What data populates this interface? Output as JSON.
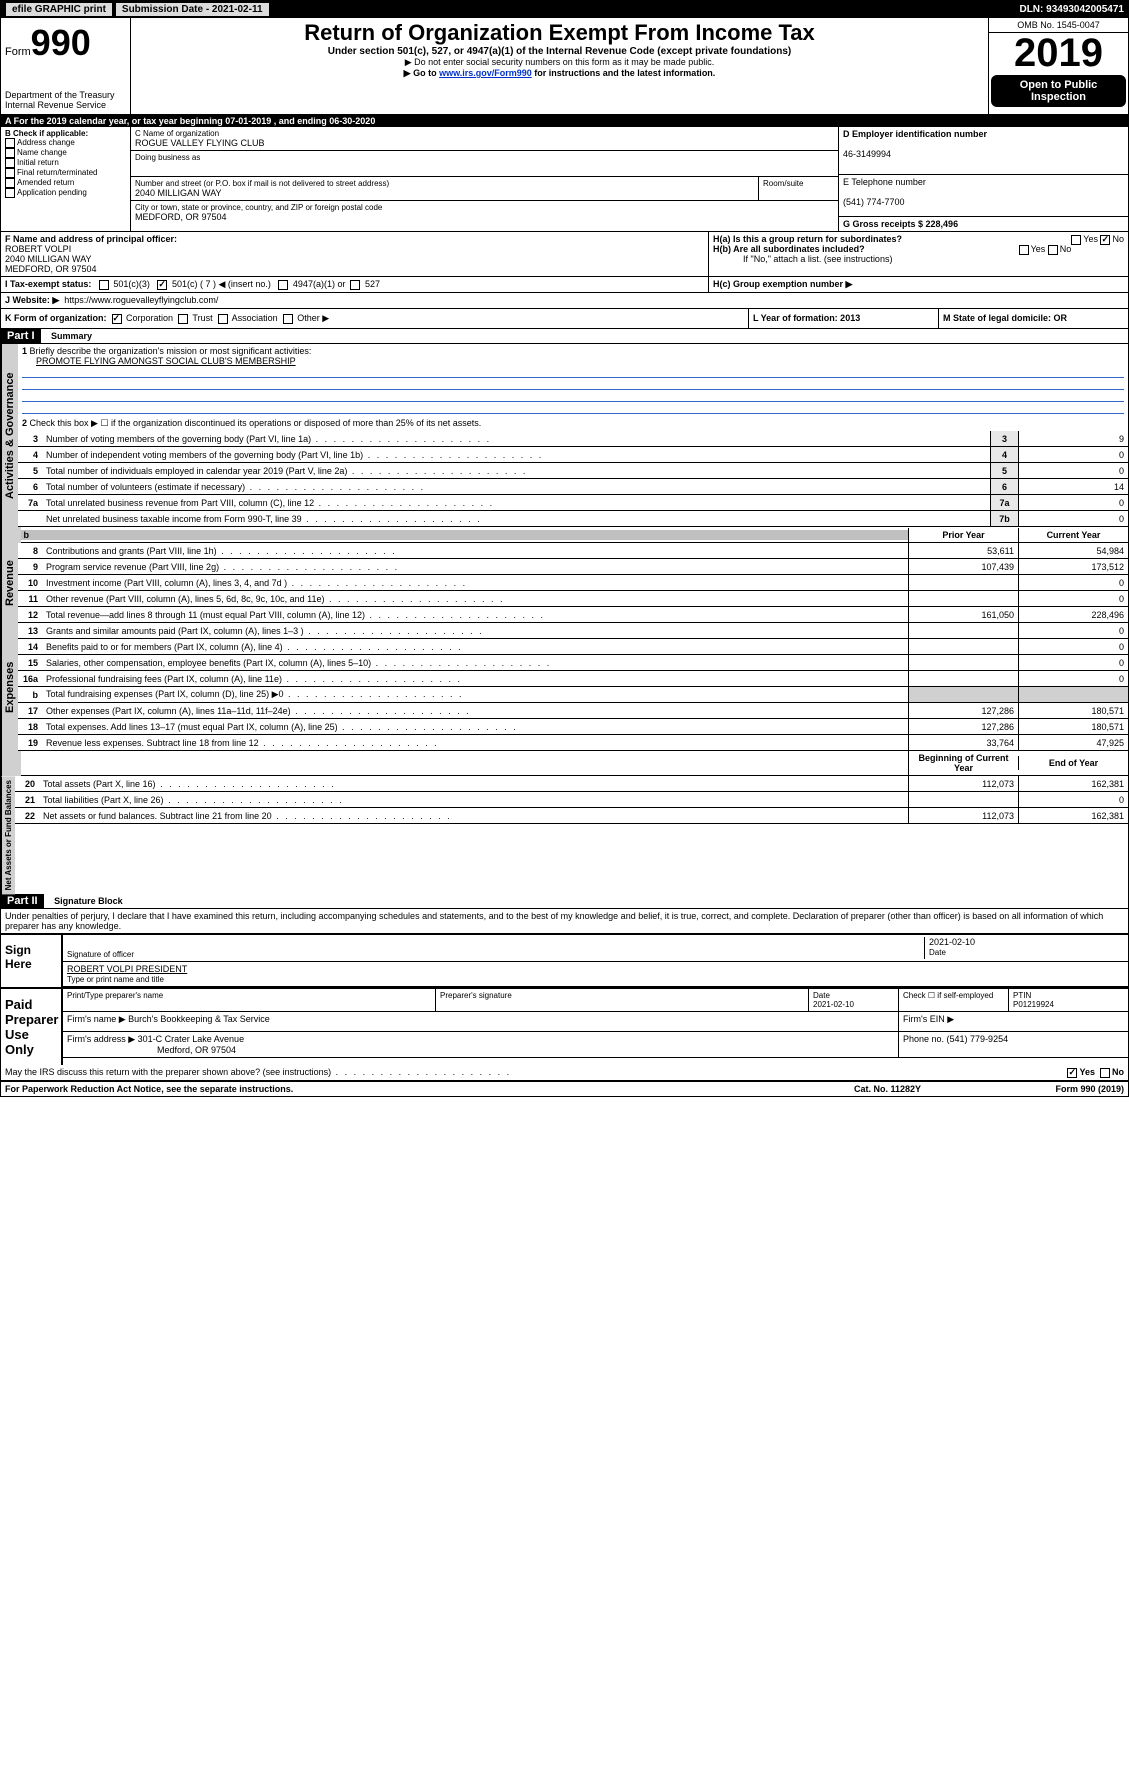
{
  "topbar": {
    "efile": "efile GRAPHIC print",
    "subdate_label": "Submission Date - 2021-02-11",
    "dln": "DLN: 93493042005471"
  },
  "header": {
    "form_prefix": "Form",
    "form_no": "990",
    "title": "Return of Organization Exempt From Income Tax",
    "sub1": "Under section 501(c), 527, or 4947(a)(1) of the Internal Revenue Code (except private foundations)",
    "sub2": "▶ Do not enter social security numbers on this form as it may be made public.",
    "sub3_pre": "▶ Go to ",
    "sub3_link": "www.irs.gov/Form990",
    "sub3_post": " for instructions and the latest information.",
    "omb": "OMB No. 1545-0047",
    "year": "2019",
    "open": "Open to Public Inspection",
    "dept": "Department of the Treasury",
    "irs": "Internal Revenue Service"
  },
  "sectionA": {
    "text": "A For the 2019 calendar year, or tax year beginning 07-01-2019     , and ending 06-30-2020"
  },
  "B": {
    "label": "B Check if applicable:",
    "opts": [
      "Address change",
      "Name change",
      "Initial return",
      "Final return/terminated",
      "Amended return",
      "Application pending"
    ]
  },
  "C": {
    "name_label": "C Name of organization",
    "name": "ROGUE VALLEY FLYING CLUB",
    "dba_label": "Doing business as",
    "addr_label": "Number and street (or P.O. box if mail is not delivered to street address)",
    "room_label": "Room/suite",
    "addr": "2040 MILLIGAN WAY",
    "city_label": "City or town, state or province, country, and ZIP or foreign postal code",
    "city": "MEDFORD, OR  97504"
  },
  "D": {
    "label": "D Employer identification number",
    "val": "46-3149994"
  },
  "E": {
    "label": "E Telephone number",
    "val": "(541) 774-7700"
  },
  "G": {
    "label": "G Gross receipts $ 228,496"
  },
  "F": {
    "label": "F  Name and address of principal officer:",
    "name": "ROBERT VOLPI",
    "addr1": "2040 MILLIGAN WAY",
    "addr2": "MEDFORD, OR  97504"
  },
  "H": {
    "a": "H(a)  Is this a group return for subordinates?",
    "b": "H(b)  Are all subordinates included?",
    "b2": "If \"No,\" attach a list. (see instructions)",
    "c": "H(c)  Group exemption number ▶",
    "yes": "Yes",
    "no": "No"
  },
  "I": {
    "label": "I  Tax-exempt status:",
    "o1": "501(c)(3)",
    "o2": "501(c) ( 7 ) ◀ (insert no.)",
    "o3": "4947(a)(1) or",
    "o4": "527"
  },
  "J": {
    "label": "J   Website: ▶",
    "val": "https://www.roguevalleyflyingclub.com/"
  },
  "K": {
    "label": "K Form of organization:",
    "o1": "Corporation",
    "o2": "Trust",
    "o3": "Association",
    "o4": "Other ▶"
  },
  "L": {
    "label": "L Year of formation: 2013"
  },
  "M": {
    "label": "M State of legal domicile: OR"
  },
  "part1": {
    "hdr": "Part I",
    "title": "Summary",
    "l1": "Briefly describe the organization's mission or most significant activities:",
    "l1v": "PROMOTE FLYING AMONGST SOCIAL CLUB'S MEMBERSHIP",
    "l2": "Check this box ▶ ☐  if the organization discontinued its operations or disposed of more than 25% of its net assets.",
    "rows": [
      {
        "n": "3",
        "d": "Number of voting members of the governing body (Part VI, line 1a)",
        "c": "3",
        "v": "9"
      },
      {
        "n": "4",
        "d": "Number of independent voting members of the governing body (Part VI, line 1b)",
        "c": "4",
        "v": "0"
      },
      {
        "n": "5",
        "d": "Total number of individuals employed in calendar year 2019 (Part V, line 2a)",
        "c": "5",
        "v": "0"
      },
      {
        "n": "6",
        "d": "Total number of volunteers (estimate if necessary)",
        "c": "6",
        "v": "14"
      },
      {
        "n": "7a",
        "d": "Total unrelated business revenue from Part VIII, column (C), line 12",
        "c": "7a",
        "v": "0"
      },
      {
        "n": "",
        "d": "Net unrelated business taxable income from Form 990-T, line 39",
        "c": "7b",
        "v": "0"
      }
    ],
    "yearhdr_prior": "Prior Year",
    "yearhdr_curr": "Current Year",
    "rev": [
      {
        "n": "8",
        "d": "Contributions and grants (Part VIII, line 1h)",
        "p": "53,611",
        "c": "54,984"
      },
      {
        "n": "9",
        "d": "Program service revenue (Part VIII, line 2g)",
        "p": "107,439",
        "c": "173,512"
      },
      {
        "n": "10",
        "d": "Investment income (Part VIII, column (A), lines 3, 4, and 7d )",
        "p": "",
        "c": "0"
      },
      {
        "n": "11",
        "d": "Other revenue (Part VIII, column (A), lines 5, 6d, 8c, 9c, 10c, and 11e)",
        "p": "",
        "c": "0"
      },
      {
        "n": "12",
        "d": "Total revenue—add lines 8 through 11 (must equal Part VIII, column (A), line 12)",
        "p": "161,050",
        "c": "228,496"
      }
    ],
    "exp": [
      {
        "n": "13",
        "d": "Grants and similar amounts paid (Part IX, column (A), lines 1–3 )",
        "p": "",
        "c": "0"
      },
      {
        "n": "14",
        "d": "Benefits paid to or for members (Part IX, column (A), line 4)",
        "p": "",
        "c": "0"
      },
      {
        "n": "15",
        "d": "Salaries, other compensation, employee benefits (Part IX, column (A), lines 5–10)",
        "p": "",
        "c": "0"
      },
      {
        "n": "16a",
        "d": "Professional fundraising fees (Part IX, column (A), line 11e)",
        "p": "",
        "c": "0"
      },
      {
        "n": "b",
        "d": "Total fundraising expenses (Part IX, column (D), line 25) ▶0",
        "p": "shaded",
        "c": "shaded"
      },
      {
        "n": "17",
        "d": "Other expenses (Part IX, column (A), lines 11a–11d, 11f–24e)",
        "p": "127,286",
        "c": "180,571"
      },
      {
        "n": "18",
        "d": "Total expenses. Add lines 13–17 (must equal Part IX, column (A), line 25)",
        "p": "127,286",
        "c": "180,571"
      },
      {
        "n": "19",
        "d": "Revenue less expenses. Subtract line 18 from line 12",
        "p": "33,764",
        "c": "47,925"
      }
    ],
    "bal_hdr_beg": "Beginning of Current Year",
    "bal_hdr_end": "End of Year",
    "bal": [
      {
        "n": "20",
        "d": "Total assets (Part X, line 16)",
        "p": "112,073",
        "c": "162,381"
      },
      {
        "n": "21",
        "d": "Total liabilities (Part X, line 26)",
        "p": "",
        "c": "0"
      },
      {
        "n": "22",
        "d": "Net assets or fund balances. Subtract line 21 from line 20",
        "p": "112,073",
        "c": "162,381"
      }
    ],
    "vtabs": {
      "gov": "Activities & Governance",
      "rev": "Revenue",
      "exp": "Expenses",
      "net": "Net Assets or Fund Balances"
    }
  },
  "part2": {
    "hdr": "Part II",
    "title": "Signature Block",
    "perjury": "Under penalties of perjury, I declare that I have examined this return, including accompanying schedules and statements, and to the best of my knowledge and belief, it is true, correct, and complete. Declaration of preparer (other than officer) is based on all information of which preparer has any knowledge.",
    "sign_here": "Sign Here",
    "sig_officer": "Signature of officer",
    "sig_date": "2021-02-10",
    "date_lbl": "Date",
    "officer_name": "ROBERT VOLPI  PRESIDENT",
    "type_name": "Type or print name and title",
    "paid": "Paid Preparer Use Only",
    "prep_name_lbl": "Print/Type preparer's name",
    "prep_sig_lbl": "Preparer's signature",
    "prep_date": "2021-02-10",
    "check_self": "Check ☐ if self-employed",
    "ptin_lbl": "PTIN",
    "ptin": "P01219924",
    "firm_name_lbl": "Firm's name    ▶",
    "firm_name": "Burch's Bookkeeping & Tax Service",
    "firm_ein": "Firm's EIN ▶",
    "firm_addr_lbl": "Firm's address ▶",
    "firm_addr": "301-C Crater Lake Avenue",
    "firm_city": "Medford, OR  97504",
    "phone_lbl": "Phone no. (541) 779-9254",
    "discuss": "May the IRS discuss this return with the preparer shown above? (see instructions)"
  },
  "footer": {
    "pra": "For Paperwork Reduction Act Notice, see the separate instructions.",
    "cat": "Cat. No. 11282Y",
    "form": "Form 990 (2019)"
  }
}
